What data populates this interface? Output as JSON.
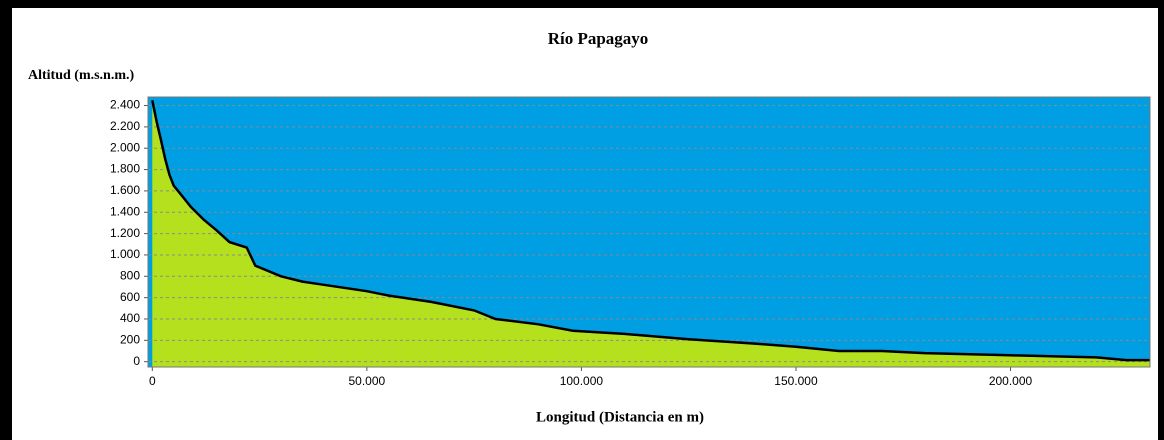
{
  "chart_data": {
    "type": "area",
    "title": "Río Papagayo",
    "y_label": "Altitud (m.s.n.m.)",
    "x_label": "Longitud (Distancia en m)",
    "x": [
      0,
      1000,
      2000,
      3000,
      4000,
      5000,
      7000,
      9000,
      12000,
      15000,
      18000,
      22000,
      24000,
      30000,
      35000,
      40000,
      50000,
      55000,
      65000,
      75000,
      80000,
      90000,
      98000,
      110000,
      125000,
      140000,
      150000,
      160000,
      170000,
      180000,
      200000,
      220000,
      227000,
      232500
    ],
    "values": [
      2450,
      2250,
      2080,
      1900,
      1750,
      1650,
      1550,
      1450,
      1330,
      1230,
      1120,
      1070,
      900,
      800,
      750,
      720,
      660,
      620,
      560,
      480,
      400,
      350,
      290,
      260,
      210,
      170,
      140,
      100,
      100,
      80,
      60,
      40,
      15,
      15
    ],
    "fill_color": "#b5e01e",
    "background_color": "#009fe3",
    "line_color": "#000000",
    "xlim": [
      -1000,
      232500
    ],
    "ylim": [
      -50,
      2480
    ],
    "xticks": [
      0,
      {
        "value": 50000,
        "label": "50.000"
      },
      {
        "value": 100000,
        "label": "100.000"
      },
      {
        "value": 150000,
        "label": "150.000"
      },
      {
        "value": 200000,
        "label": "200.000"
      }
    ],
    "yticks": [
      0,
      200,
      400,
      600,
      800,
      {
        "value": 1000,
        "label": "1.000"
      },
      {
        "value": 1200,
        "label": "1.200"
      },
      {
        "value": 1400,
        "label": "1.400"
      },
      {
        "value": 1600,
        "label": "1.600"
      },
      {
        "value": 1800,
        "label": "1.800"
      },
      {
        "value": 2000,
        "label": "2.000"
      },
      {
        "value": 2200,
        "label": "2.200"
      },
      {
        "value": 2400,
        "label": "2.400"
      }
    ],
    "grid": true
  }
}
